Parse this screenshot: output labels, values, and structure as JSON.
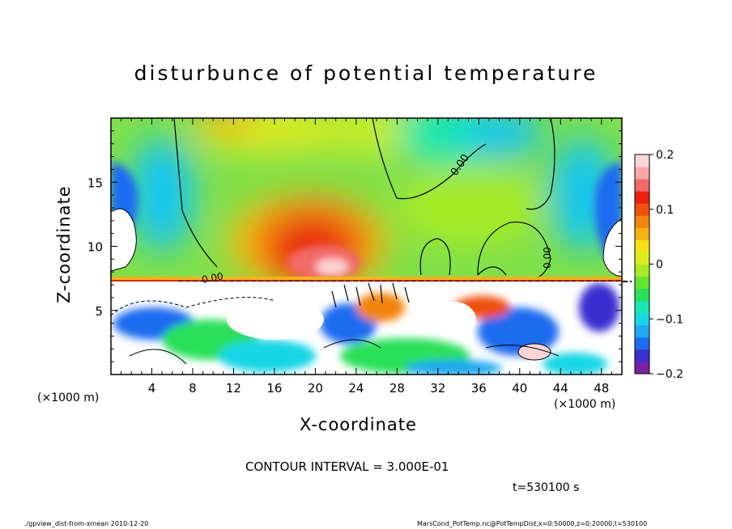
{
  "chart_data": {
    "type": "heatmap",
    "title": "disturbunce of potential temperature",
    "xlabel": "X-coordinate",
    "ylabel": "Z-coordinate",
    "x_unit_left": "(×1000 m)",
    "x_unit_right": "(×1000 m)",
    "xlim": [
      0,
      50
    ],
    "ylim": [
      0,
      20
    ],
    "x_ticks": [
      "4",
      "8",
      "12",
      "16",
      "20",
      "24",
      "28",
      "32",
      "36",
      "40",
      "44",
      "48"
    ],
    "y_ticks": [
      "5",
      "10",
      "15"
    ],
    "colorbar": {
      "range": [
        -0.2,
        0.2
      ],
      "tick_labels": [
        "0.2",
        "0.1",
        "0",
        "−0.1",
        "−0.2"
      ],
      "colors": [
        "#7a1fa0",
        "#3a2fd0",
        "#1e6cf0",
        "#1ea8f0",
        "#17d6e6",
        "#19e6b0",
        "#29e05a",
        "#62e630",
        "#a6ea28",
        "#dcee20",
        "#f6e018",
        "#f6b414",
        "#f28410",
        "#f0500e",
        "#e8200c",
        "#f26a6a",
        "#f7a6a6",
        "#fbd6d6"
      ]
    },
    "contour_labels": [
      "0.00",
      "0.00",
      "0.00"
    ],
    "contour_interval_text": "CONTOUR INTERVAL = 3.000E-01",
    "time_text": "t=530100 s",
    "grid": false
  },
  "footer": {
    "left": "./gpview_dist-from-xmean   2010-12-20",
    "right": "MarsCond_PotTemp.nc@PotTempDist,x=0:50000,z=0:20000,t=530100"
  }
}
